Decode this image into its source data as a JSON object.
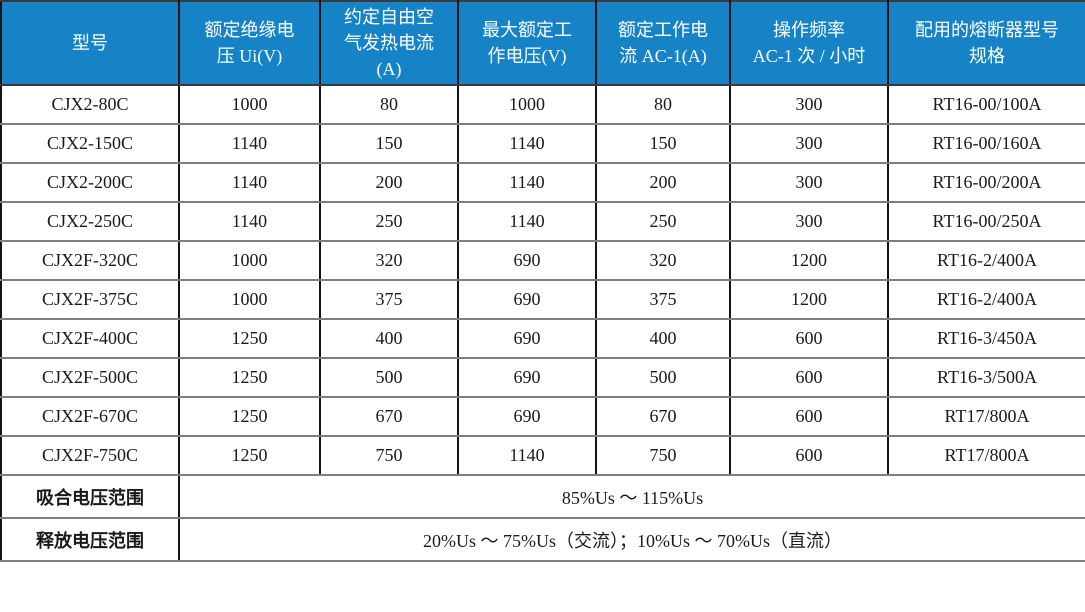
{
  "colors": {
    "header_bg": "#1583c6",
    "header_text": "#ffffff",
    "grid_horizontal": "#7f7f7f",
    "grid_vertical": "#141414"
  },
  "table": {
    "columns": [
      "型号",
      "额定绝缘电\n压 Ui(V)",
      "约定自由空\n气发热电流\n(A)",
      "最大额定工\n作电压(V)",
      "额定工作电\n流 AC-1(A)",
      "操作频率\nAC-1 次 / 小时",
      "配用的熔断器型号\n规格"
    ],
    "rows": [
      [
        "CJX2-80C",
        "1000",
        "80",
        "1000",
        "80",
        "300",
        "RT16-00/100A"
      ],
      [
        "CJX2-150C",
        "1140",
        "150",
        "1140",
        "150",
        "300",
        "RT16-00/160A"
      ],
      [
        "CJX2-200C",
        "1140",
        "200",
        "1140",
        "200",
        "300",
        "RT16-00/200A"
      ],
      [
        "CJX2-250C",
        "1140",
        "250",
        "1140",
        "250",
        "300",
        "RT16-00/250A"
      ],
      [
        "CJX2F-320C",
        "1000",
        "320",
        "690",
        "320",
        "1200",
        "RT16-2/400A"
      ],
      [
        "CJX2F-375C",
        "1000",
        "375",
        "690",
        "375",
        "1200",
        "RT16-2/400A"
      ],
      [
        "CJX2F-400C",
        "1250",
        "400",
        "690",
        "400",
        "600",
        "RT16-3/450A"
      ],
      [
        "CJX2F-500C",
        "1250",
        "500",
        "690",
        "500",
        "600",
        "RT16-3/500A"
      ],
      [
        "CJX2F-670C",
        "1250",
        "670",
        "690",
        "670",
        "600",
        "RT17/800A"
      ],
      [
        "CJX2F-750C",
        "1250",
        "750",
        "1140",
        "750",
        "600",
        "RT17/800A"
      ]
    ],
    "footer": [
      {
        "label": "吸合电压范围",
        "value": "85%Us ～ 115%Us"
      },
      {
        "label": "释放电压范围",
        "value": "20%Us ～ 75%Us（交流）；10%Us ～ 70%Us（直流）"
      }
    ]
  }
}
